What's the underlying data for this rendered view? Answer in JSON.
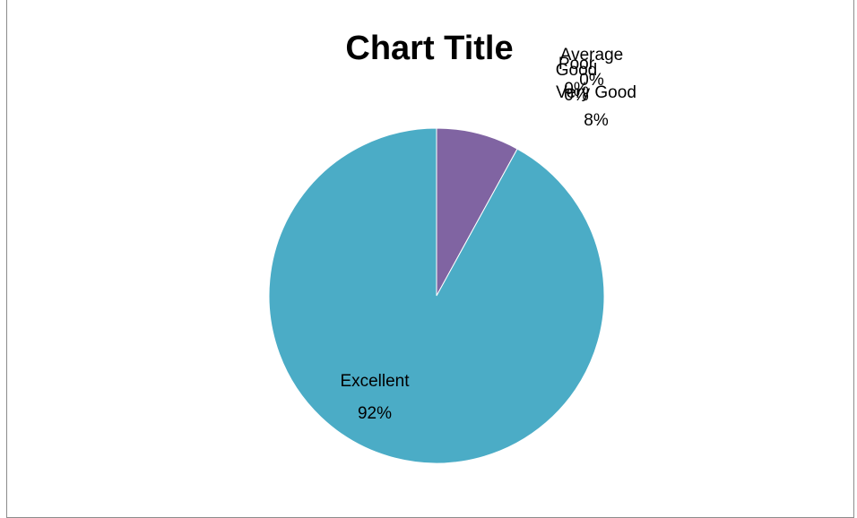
{
  "chart_data": {
    "type": "pie",
    "title": "Chart Title",
    "slices": [
      {
        "label": "Excellent",
        "value": 92,
        "percent_text": "92%",
        "color": "#4BACC6"
      },
      {
        "label": "Very Good",
        "value": 8,
        "percent_text": "8%",
        "color": "#8064A2"
      },
      {
        "label": "Good",
        "value": 0,
        "percent_text": "0%",
        "color": "#9BBB59"
      },
      {
        "label": "Average",
        "value": 0,
        "percent_text": "0%",
        "color": "#C0504D"
      },
      {
        "label": "Poor",
        "value": 0,
        "percent_text": "0%",
        "color": "#4F81BD"
      }
    ],
    "legend": "none",
    "data_labels": "category and percent"
  }
}
